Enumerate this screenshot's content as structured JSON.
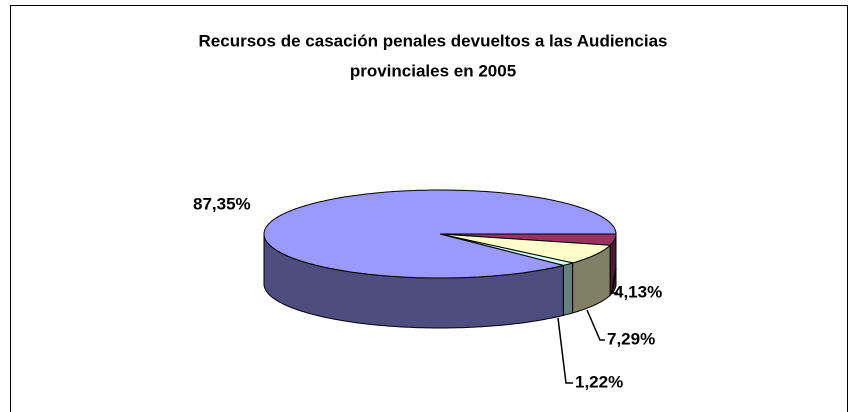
{
  "chart_data": {
    "type": "pie3d",
    "title": [
      "Recursos de casación penales devueltos a las Audiencias",
      "provinciales en 2005"
    ],
    "values": [
      4.13,
      7.29,
      1.22,
      87.35
    ],
    "value_labels": [
      "4,13%",
      "7,29%",
      "1,22%",
      "87,35%"
    ],
    "colors": [
      "#993366",
      "#ffffcc",
      "#ccffff",
      "#9999ff"
    ]
  }
}
